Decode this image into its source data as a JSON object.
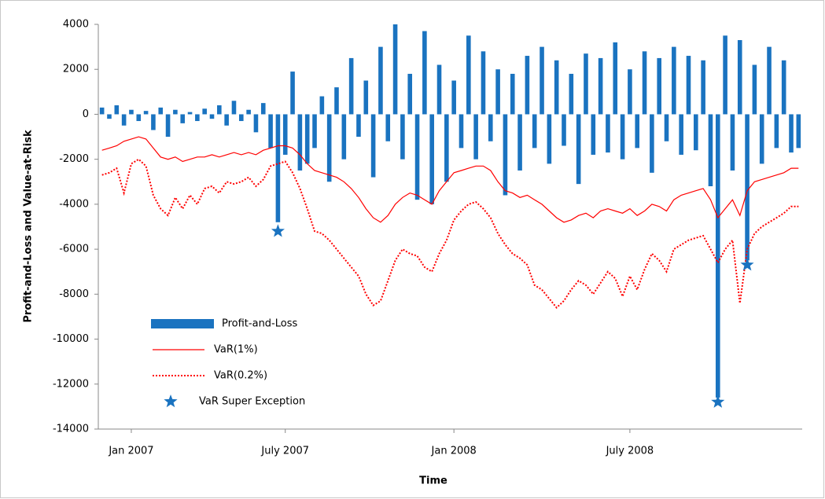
{
  "chart_data": {
    "type": "combo",
    "y_label": "Profit-and-Loss and Value-at-Risk",
    "x_label": "Time",
    "categories": [
      null,
      null,
      null,
      null,
      "Jan 2007",
      null,
      null,
      null,
      null,
      null,
      null,
      null,
      null,
      null,
      null,
      null,
      null,
      null,
      null,
      null,
      null,
      null,
      null,
      null,
      null,
      "July 2007",
      null,
      null,
      null,
      null,
      null,
      null,
      null,
      null,
      null,
      null,
      null,
      null,
      null,
      null,
      null,
      null,
      null,
      null,
      null,
      null,
      null,
      null,
      "Jan 2008",
      null,
      null,
      null,
      null,
      null,
      null,
      null,
      null,
      null,
      null,
      null,
      null,
      null,
      null,
      null,
      null,
      null,
      null,
      null,
      null,
      null,
      null,
      null,
      "July 2008",
      null,
      null,
      null,
      null,
      null,
      null,
      null,
      null,
      null,
      null,
      null,
      null,
      null,
      null,
      null,
      null,
      null,
      null,
      null,
      null,
      null,
      null,
      null
    ],
    "ylim": [
      -14000,
      4000
    ],
    "yticks": [
      -14000,
      -12000,
      -10000,
      -8000,
      -6000,
      -4000,
      -2000,
      0,
      2000,
      4000
    ],
    "series": [
      {
        "name": "Profit-and-Loss",
        "type": "bar",
        "color": "#1a73c0",
        "values": [
          300,
          -200,
          400,
          -500,
          200,
          -300,
          150,
          -700,
          300,
          -1000,
          200,
          -400,
          100,
          -300,
          250,
          -200,
          400,
          -500,
          600,
          -300,
          200,
          -800,
          500,
          -1500,
          -4800,
          -1800,
          1900,
          -2500,
          -2200,
          -1500,
          800,
          -3000,
          1200,
          -2000,
          2500,
          -1000,
          1500,
          -2800,
          3000,
          -1200,
          4000,
          -2000,
          1800,
          -3800,
          3700,
          -4000,
          2200,
          -3000,
          1500,
          -1500,
          3500,
          -2000,
          2800,
          -1200,
          2000,
          -3600,
          1800,
          -2500,
          2600,
          -1500,
          3000,
          -2200,
          2400,
          -1400,
          1800,
          -3100,
          2700,
          -1800,
          2500,
          -1700,
          3200,
          -2000,
          2000,
          -1500,
          2800,
          -2600,
          2500,
          -1200,
          3000,
          -1800,
          2600,
          -1600,
          2400,
          -3200,
          -12600,
          3500,
          -2500,
          3300,
          -6500,
          2200,
          -2200,
          3000,
          -1500,
          2400,
          -1700,
          -1500
        ]
      },
      {
        "name": "VaR(1%)",
        "type": "line",
        "color": "#ff0000",
        "line_style": "solid",
        "values": [
          -1600,
          -1500,
          -1400,
          -1200,
          -1100,
          -1000,
          -1100,
          -1500,
          -1900,
          -2000,
          -1900,
          -2100,
          -2000,
          -1900,
          -1900,
          -1800,
          -1900,
          -1800,
          -1700,
          -1800,
          -1700,
          -1800,
          -1600,
          -1500,
          -1400,
          -1400,
          -1500,
          -1800,
          -2200,
          -2500,
          -2600,
          -2700,
          -2800,
          -3000,
          -3300,
          -3700,
          -4200,
          -4600,
          -4800,
          -4500,
          -4000,
          -3700,
          -3500,
          -3600,
          -3800,
          -4000,
          -3400,
          -3000,
          -2600,
          -2500,
          -2400,
          -2300,
          -2300,
          -2500,
          -3000,
          -3400,
          -3500,
          -3700,
          -3600,
          -3800,
          -4000,
          -4300,
          -4600,
          -4800,
          -4700,
          -4500,
          -4400,
          -4600,
          -4300,
          -4200,
          -4300,
          -4400,
          -4200,
          -4500,
          -4300,
          -4000,
          -4100,
          -4300,
          -3800,
          -3600,
          -3500,
          -3400,
          -3300,
          -3800,
          -4600,
          -4200,
          -3800,
          -4500,
          -3400,
          -3000,
          -2900,
          -2800,
          -2700,
          -2600,
          -2400,
          -2400
        ]
      },
      {
        "name": "VaR(0.2%)",
        "type": "line",
        "color": "#ff0000",
        "line_style": "dotted",
        "values": [
          -2700,
          -2600,
          -2400,
          -3500,
          -2200,
          -2000,
          -2300,
          -3600,
          -4200,
          -4500,
          -3700,
          -4200,
          -3600,
          -4000,
          -3300,
          -3200,
          -3500,
          -3000,
          -3100,
          -3000,
          -2800,
          -3200,
          -2900,
          -2300,
          -2200,
          -2100,
          -2600,
          -3300,
          -4200,
          -5200,
          -5300,
          -5600,
          -6000,
          -6400,
          -6800,
          -7200,
          -8000,
          -8500,
          -8300,
          -7400,
          -6500,
          -6000,
          -6200,
          -6300,
          -6800,
          -7000,
          -6200,
          -5600,
          -4700,
          -4300,
          -4000,
          -3900,
          -4200,
          -4600,
          -5300,
          -5800,
          -6200,
          -6400,
          -6700,
          -7600,
          -7800,
          -8200,
          -8600,
          -8300,
          -7800,
          -7400,
          -7600,
          -8000,
          -7500,
          -7000,
          -7300,
          -8100,
          -7200,
          -7800,
          -6900,
          -6200,
          -6500,
          -7000,
          -6000,
          -5800,
          -5600,
          -5500,
          -5400,
          -6000,
          -6600,
          -6000,
          -5600,
          -8400,
          -6000,
          -5300,
          -5000,
          -4800,
          -4600,
          -4400,
          -4100,
          -4100
        ]
      },
      {
        "name": "VaR Super Exception",
        "type": "scatter",
        "color": "#1a73c0",
        "values": [
          null,
          null,
          null,
          null,
          null,
          null,
          null,
          null,
          null,
          null,
          null,
          null,
          null,
          null,
          null,
          null,
          null,
          null,
          null,
          null,
          null,
          null,
          null,
          null,
          -5200,
          null,
          null,
          null,
          null,
          null,
          null,
          null,
          null,
          null,
          null,
          null,
          null,
          null,
          null,
          null,
          null,
          null,
          null,
          null,
          null,
          null,
          null,
          null,
          null,
          null,
          null,
          null,
          null,
          null,
          null,
          null,
          null,
          null,
          null,
          null,
          null,
          null,
          null,
          null,
          null,
          null,
          null,
          null,
          null,
          null,
          null,
          null,
          null,
          null,
          null,
          null,
          null,
          null,
          null,
          null,
          null,
          null,
          null,
          null,
          -12800,
          null,
          null,
          null,
          -6700,
          null,
          null,
          null,
          null,
          null,
          null,
          null
        ]
      }
    ]
  }
}
